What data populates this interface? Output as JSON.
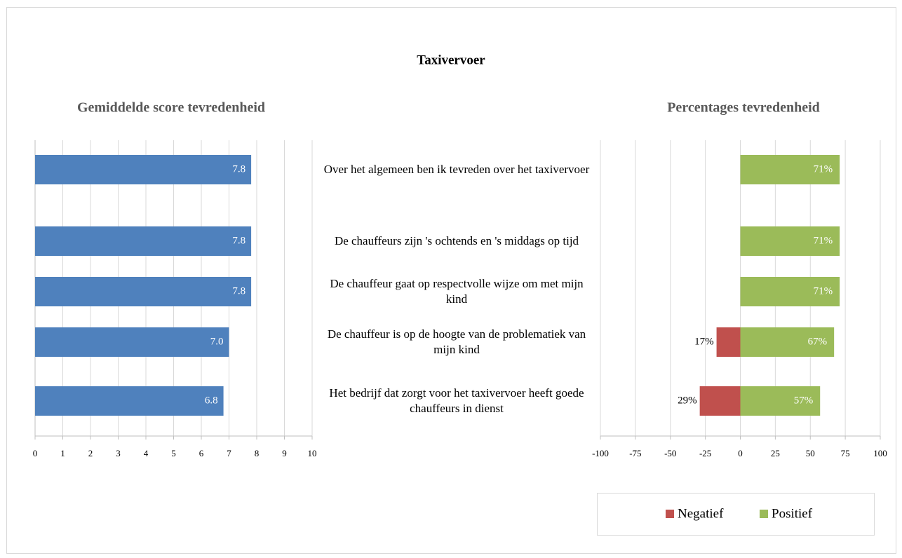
{
  "title": "Taxivervoer",
  "chart_data": [
    {
      "type": "bar",
      "title": "Gemiddelde score tevredenheid",
      "categories": [
        "Over het algemeen ben ik tevreden over het taxivervoer",
        "De chauffeurs zijn 's ochtends en 's middags op tijd",
        "De chauffeur gaat op respectvolle wijze om met mijn kind",
        "De chauffeur is op de hoogte van de problematiek van mijn kind",
        "Het bedrijf dat zorgt voor het taxivervoer heeft goede chauffeurs in dienst"
      ],
      "values": [
        7.8,
        7.8,
        7.8,
        7.0,
        6.8
      ],
      "value_labels": [
        "7.8",
        "7.8",
        "7.8",
        "7.0",
        "6.8"
      ],
      "color": "#4f81bd",
      "xlim": [
        0,
        10
      ],
      "xticks": [
        0,
        1,
        2,
        3,
        4,
        5,
        6,
        7,
        8,
        9,
        10
      ],
      "grid": true
    },
    {
      "type": "diverging_bar",
      "title": "Percentages tevredenheid",
      "series": [
        {
          "name": "Negatief",
          "color": "#c0504d",
          "values": [
            null,
            null,
            null,
            -17,
            -29
          ],
          "value_labels": [
            null,
            null,
            null,
            "17%",
            "29%"
          ]
        },
        {
          "name": "Positief",
          "color": "#9bbb59",
          "values": [
            71,
            71,
            71,
            67,
            57
          ],
          "value_labels": [
            "71%",
            "71%",
            "71%",
            "67%",
            "57%"
          ]
        }
      ],
      "xlim": [
        -100,
        100
      ],
      "xticks": [
        -100,
        -75,
        -50,
        -25,
        0,
        25,
        50,
        75,
        100
      ],
      "grid": true,
      "legend": "bottom"
    }
  ]
}
